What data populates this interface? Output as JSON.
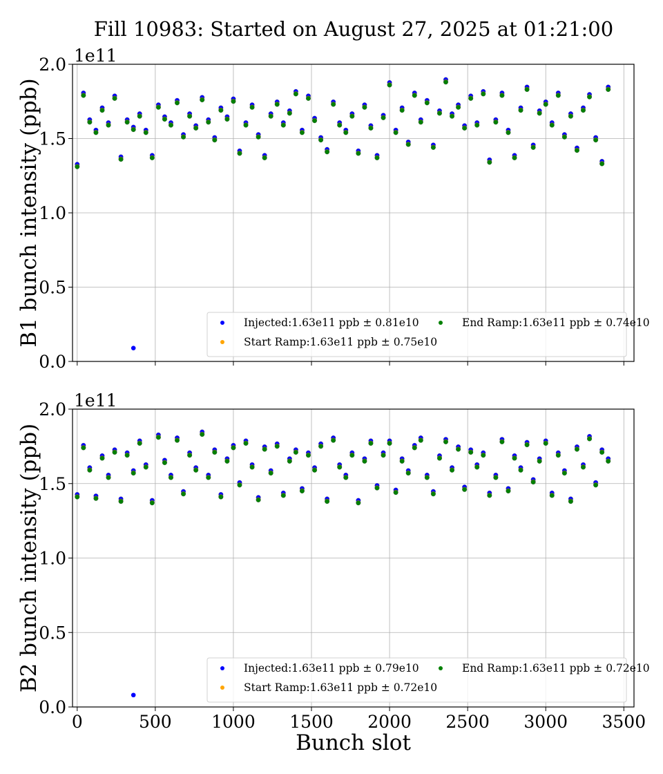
{
  "title": "Fill 10983: Started on August 27, 2025 at 01:21:00",
  "colors": {
    "injected": "#0000ff",
    "start_ramp": "#ffa500",
    "end_ramp": "#008000"
  },
  "chart_data": [
    {
      "type": "scatter",
      "ylabel": "B1 bunch intensity (ppb)",
      "xlabel": "",
      "offset_label": "1e11",
      "xlim": [
        -30,
        3565
      ],
      "ylim": [
        0.0,
        2.0
      ],
      "xticks": [
        0,
        500,
        1000,
        1500,
        2000,
        2500,
        3000,
        3500
      ],
      "xtick_labels_shown": false,
      "yticks": [
        "0.0",
        "0.5",
        "1.0",
        "1.5",
        "2.0"
      ],
      "grid": true,
      "legend_position": "lower-right",
      "x": [
        0,
        40,
        80,
        120,
        160,
        200,
        240,
        280,
        320,
        360,
        400,
        440,
        480,
        520,
        560,
        600,
        640,
        680,
        720,
        760,
        800,
        840,
        880,
        920,
        960,
        1000,
        1040,
        1080,
        1120,
        1160,
        1200,
        1240,
        1280,
        1320,
        1360,
        1400,
        1440,
        1480,
        1520,
        1560,
        1600,
        1640,
        1680,
        1720,
        1760,
        1800,
        1840,
        1880,
        1920,
        1960,
        2000,
        2040,
        2080,
        2120,
        2160,
        2200,
        2240,
        2280,
        2320,
        2360,
        2400,
        2440,
        2480,
        2520,
        2560,
        2600,
        2640,
        2680,
        2720,
        2760,
        2800,
        2840,
        2880,
        2920,
        2960,
        3000,
        3040,
        3080,
        3120,
        3160,
        3200,
        3240,
        3280,
        3320,
        3360,
        3400
      ],
      "series": [
        {
          "name": "Injected:1.63e11 ppb ± 0.81e10",
          "color_key": "injected",
          "values": [
            1.32,
            1.8,
            1.62,
            1.55,
            1.7,
            1.6,
            1.78,
            1.37,
            1.62,
            1.57,
            1.66,
            1.55,
            1.38,
            1.72,
            1.64,
            1.6,
            1.75,
            1.52,
            1.66,
            1.58,
            1.77,
            1.62,
            1.5,
            1.7,
            1.64,
            1.76,
            1.41,
            1.6,
            1.72,
            1.52,
            1.38,
            1.66,
            1.74,
            1.6,
            1.68,
            1.81,
            1.55,
            1.78,
            1.63,
            1.5,
            1.42,
            1.74,
            1.6,
            1.55,
            1.66,
            1.41,
            1.72,
            1.58,
            1.38,
            1.65,
            1.87,
            1.55,
            1.7,
            1.47,
            1.8,
            1.62,
            1.75,
            1.45,
            1.68,
            1.89,
            1.66,
            1.72,
            1.58,
            1.78,
            1.6,
            1.81,
            1.35,
            1.62,
            1.8,
            1.55,
            1.38,
            1.7,
            1.84,
            1.45,
            1.68,
            1.74,
            1.6,
            1.8,
            1.52,
            1.66,
            1.43,
            1.7,
            1.79,
            1.5,
            1.34,
            1.84
          ],
          "extra_points": [
            [
              360,
              0.09
            ]
          ]
        },
        {
          "name": "Start Ramp:1.63e11 ppb ± 0.75e10",
          "color_key": "start_ramp",
          "values": [
            1.31,
            1.79,
            1.61,
            1.54,
            1.69,
            1.59,
            1.77,
            1.36,
            1.61,
            1.56,
            1.65,
            1.54,
            1.37,
            1.71,
            1.63,
            1.59,
            1.74,
            1.51,
            1.65,
            1.57,
            1.76,
            1.61,
            1.49,
            1.69,
            1.63,
            1.75,
            1.4,
            1.59,
            1.71,
            1.51,
            1.37,
            1.65,
            1.73,
            1.59,
            1.67,
            1.8,
            1.54,
            1.77,
            1.62,
            1.49,
            1.41,
            1.73,
            1.59,
            1.54,
            1.65,
            1.4,
            1.71,
            1.57,
            1.37,
            1.64,
            1.86,
            1.54,
            1.69,
            1.46,
            1.79,
            1.61,
            1.74,
            1.44,
            1.67,
            1.88,
            1.65,
            1.71,
            1.57,
            1.77,
            1.59,
            1.8,
            1.34,
            1.61,
            1.79,
            1.54,
            1.37,
            1.69,
            1.83,
            1.44,
            1.67,
            1.73,
            1.59,
            1.79,
            1.51,
            1.65,
            1.42,
            1.69,
            1.78,
            1.49,
            1.33,
            1.83
          ]
        },
        {
          "name": "End Ramp:1.63e11 ppb ± 0.74e10",
          "color_key": "end_ramp",
          "values": [
            1.31,
            1.79,
            1.61,
            1.54,
            1.69,
            1.59,
            1.77,
            1.36,
            1.61,
            1.56,
            1.65,
            1.54,
            1.37,
            1.71,
            1.63,
            1.59,
            1.74,
            1.51,
            1.65,
            1.57,
            1.76,
            1.61,
            1.49,
            1.69,
            1.63,
            1.75,
            1.4,
            1.59,
            1.71,
            1.51,
            1.37,
            1.65,
            1.73,
            1.59,
            1.67,
            1.8,
            1.54,
            1.77,
            1.62,
            1.49,
            1.41,
            1.73,
            1.59,
            1.54,
            1.65,
            1.4,
            1.71,
            1.57,
            1.37,
            1.64,
            1.86,
            1.54,
            1.69,
            1.46,
            1.79,
            1.61,
            1.74,
            1.44,
            1.67,
            1.88,
            1.65,
            1.71,
            1.57,
            1.77,
            1.59,
            1.8,
            1.34,
            1.61,
            1.79,
            1.54,
            1.37,
            1.69,
            1.83,
            1.44,
            1.67,
            1.73,
            1.59,
            1.79,
            1.51,
            1.65,
            1.42,
            1.69,
            1.78,
            1.49,
            1.33,
            1.83
          ]
        }
      ]
    },
    {
      "type": "scatter",
      "ylabel": "B2 bunch intensity (ppb)",
      "xlabel": "Bunch slot",
      "offset_label": "1e11",
      "xlim": [
        -30,
        3565
      ],
      "ylim": [
        0.0,
        2.0
      ],
      "xticks": [
        0,
        500,
        1000,
        1500,
        2000,
        2500,
        3000,
        3500
      ],
      "xtick_labels_shown": true,
      "yticks": [
        "0.0",
        "0.5",
        "1.0",
        "1.5",
        "2.0"
      ],
      "grid": true,
      "legend_position": "lower-right",
      "x": [
        0,
        40,
        80,
        120,
        160,
        200,
        240,
        280,
        320,
        360,
        400,
        440,
        480,
        520,
        560,
        600,
        640,
        680,
        720,
        760,
        800,
        840,
        880,
        920,
        960,
        1000,
        1040,
        1080,
        1120,
        1160,
        1200,
        1240,
        1280,
        1320,
        1360,
        1400,
        1440,
        1480,
        1520,
        1560,
        1600,
        1640,
        1680,
        1720,
        1760,
        1800,
        1840,
        1880,
        1920,
        1960,
        2000,
        2040,
        2080,
        2120,
        2160,
        2200,
        2240,
        2280,
        2320,
        2360,
        2400,
        2440,
        2480,
        2520,
        2560,
        2600,
        2640,
        2680,
        2720,
        2760,
        2800,
        2840,
        2880,
        2920,
        2960,
        3000,
        3040,
        3080,
        3120,
        3160,
        3200,
        3240,
        3280,
        3320,
        3360,
        3400
      ],
      "series": [
        {
          "name": "Injected:1.63e11 ppb ± 0.79e10",
          "color_key": "injected",
          "values": [
            1.42,
            1.75,
            1.6,
            1.41,
            1.68,
            1.55,
            1.72,
            1.39,
            1.7,
            1.58,
            1.78,
            1.62,
            1.38,
            1.82,
            1.65,
            1.55,
            1.8,
            1.44,
            1.7,
            1.6,
            1.84,
            1.55,
            1.72,
            1.42,
            1.66,
            1.75,
            1.5,
            1.78,
            1.62,
            1.4,
            1.74,
            1.58,
            1.76,
            1.43,
            1.66,
            1.72,
            1.46,
            1.7,
            1.6,
            1.76,
            1.39,
            1.8,
            1.62,
            1.55,
            1.7,
            1.38,
            1.66,
            1.78,
            1.48,
            1.7,
            1.78,
            1.45,
            1.66,
            1.58,
            1.75,
            1.8,
            1.55,
            1.44,
            1.68,
            1.79,
            1.6,
            1.74,
            1.47,
            1.72,
            1.62,
            1.7,
            1.43,
            1.55,
            1.79,
            1.46,
            1.68,
            1.6,
            1.77,
            1.52,
            1.66,
            1.78,
            1.43,
            1.7,
            1.58,
            1.39,
            1.74,
            1.62,
            1.81,
            1.5,
            1.72,
            1.66
          ],
          "extra_points": [
            [
              360,
              0.08
            ]
          ]
        },
        {
          "name": "Start Ramp:1.63e11 ppb ± 0.72e10",
          "color_key": "start_ramp",
          "values": [
            1.41,
            1.74,
            1.59,
            1.4,
            1.67,
            1.54,
            1.71,
            1.38,
            1.69,
            1.57,
            1.77,
            1.61,
            1.37,
            1.81,
            1.64,
            1.54,
            1.79,
            1.43,
            1.69,
            1.59,
            1.83,
            1.54,
            1.71,
            1.41,
            1.65,
            1.74,
            1.49,
            1.77,
            1.61,
            1.39,
            1.73,
            1.57,
            1.75,
            1.42,
            1.65,
            1.71,
            1.45,
            1.69,
            1.59,
            1.75,
            1.38,
            1.79,
            1.61,
            1.54,
            1.69,
            1.37,
            1.65,
            1.77,
            1.47,
            1.69,
            1.77,
            1.44,
            1.65,
            1.57,
            1.74,
            1.79,
            1.54,
            1.43,
            1.67,
            1.78,
            1.59,
            1.73,
            1.46,
            1.71,
            1.61,
            1.69,
            1.42,
            1.54,
            1.78,
            1.45,
            1.67,
            1.59,
            1.76,
            1.51,
            1.65,
            1.77,
            1.42,
            1.69,
            1.57,
            1.38,
            1.73,
            1.61,
            1.8,
            1.49,
            1.71,
            1.65
          ]
        },
        {
          "name": "End Ramp:1.63e11 ppb ± 0.72e10",
          "color_key": "end_ramp",
          "values": [
            1.41,
            1.74,
            1.59,
            1.4,
            1.67,
            1.54,
            1.71,
            1.38,
            1.69,
            1.57,
            1.77,
            1.61,
            1.37,
            1.81,
            1.64,
            1.54,
            1.79,
            1.43,
            1.69,
            1.59,
            1.83,
            1.54,
            1.71,
            1.41,
            1.65,
            1.74,
            1.49,
            1.77,
            1.61,
            1.39,
            1.73,
            1.57,
            1.75,
            1.42,
            1.65,
            1.71,
            1.45,
            1.69,
            1.59,
            1.75,
            1.38,
            1.79,
            1.61,
            1.54,
            1.69,
            1.37,
            1.65,
            1.77,
            1.47,
            1.69,
            1.77,
            1.44,
            1.65,
            1.57,
            1.74,
            1.79,
            1.54,
            1.43,
            1.67,
            1.78,
            1.59,
            1.73,
            1.46,
            1.71,
            1.61,
            1.69,
            1.42,
            1.54,
            1.78,
            1.45,
            1.67,
            1.59,
            1.76,
            1.51,
            1.65,
            1.77,
            1.42,
            1.69,
            1.57,
            1.38,
            1.73,
            1.61,
            1.8,
            1.49,
            1.71,
            1.65
          ]
        }
      ]
    }
  ]
}
